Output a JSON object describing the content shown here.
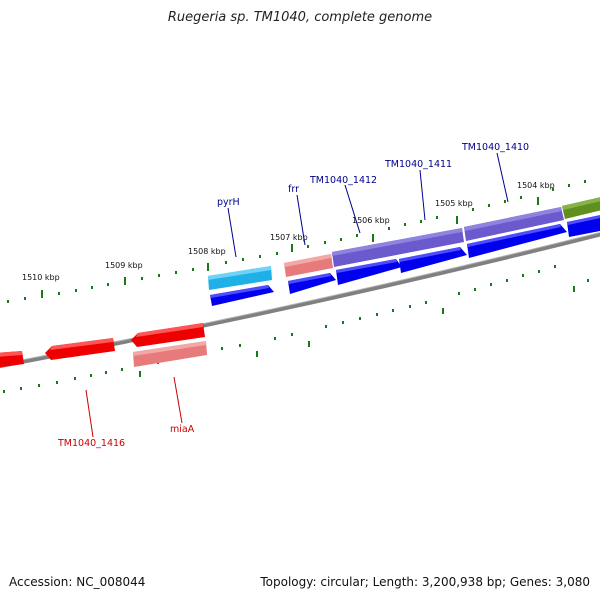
{
  "header": {
    "title": "Ruegeria sp. TM1040, complete genome"
  },
  "footer": {
    "accession": "Accession: NC_008044",
    "info": "Topology: circular; Length: 3,200,938 bp; Genes: 3,080"
  },
  "scale": {
    "unit": "kbp",
    "ticks": [
      "1510 kbp",
      "1509 kbp",
      "1508 kbp",
      "1507 kbp",
      "1506 kbp",
      "1505 kbp",
      "1504 kbp"
    ]
  },
  "genes": {
    "forward": [
      {
        "name": "pyrH",
        "color": "#0000ee",
        "label_color": "#00008b"
      },
      {
        "name": "frr",
        "color": "#0000ee",
        "label_color": "#00008b"
      },
      {
        "name": "TM1040_1412",
        "color": "#0000ee",
        "label_color": "#00008b"
      },
      {
        "name": "TM1040_1411",
        "color": "#0000ee",
        "label_color": "#00008b"
      },
      {
        "name": "TM1040_1410",
        "color": "#0000ee",
        "label_color": "#00008b"
      }
    ],
    "reverse": [
      {
        "name": "TM1040_1416",
        "color": "#ee0000",
        "label_color": "#cc0000"
      },
      {
        "name": "miaA",
        "color": "#ee0000",
        "label_color": "#cc0000"
      }
    ]
  },
  "colors": {
    "backbone": "#808080",
    "forward_cds": "#0000ee",
    "reverse_cds": "#ee0000",
    "tick": "#1a7a1a",
    "feature_cyan": "#1fb0e8",
    "feature_salmon": "#e77a7a",
    "feature_purple": "#6a5acd",
    "feature_olive": "#5f8f1f"
  }
}
